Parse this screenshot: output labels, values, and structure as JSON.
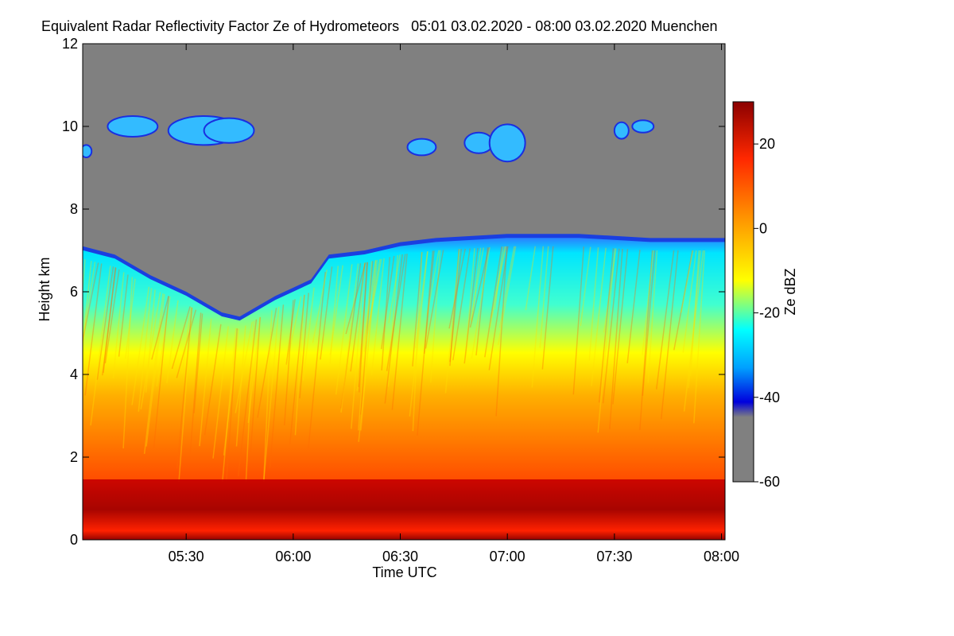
{
  "chart_data": {
    "type": "heatmap",
    "title": "Equivalent Radar Reflectivity Factor Ze of Hydrometeors   05:01 03.02.2020 - 08:00 03.02.2020 Muenchen",
    "xlabel": "Time UTC",
    "ylabel": "Height km",
    "colorbar_label": "Ze dBZ",
    "x_tick_labels": [
      "05:30",
      "06:00",
      "06:30",
      "07:00",
      "07:30",
      "08:00"
    ],
    "x_tick_minutes": [
      330,
      360,
      390,
      420,
      450,
      480
    ],
    "xlim_minutes": [
      301,
      481
    ],
    "y_ticks": [
      0,
      2,
      4,
      6,
      8,
      10,
      12
    ],
    "ylim": [
      0,
      12
    ],
    "colorbar_ticks": [
      20,
      0,
      -20,
      -40,
      -60
    ],
    "colorbar_range": [
      -60,
      30
    ],
    "background_color": "#808080",
    "colormap": [
      "#808080",
      "#0000dd",
      "#00a0ff",
      "#00ffff",
      "#ffff00",
      "#ff9000",
      "#ff2800",
      "#8b0000"
    ],
    "regions": [
      {
        "name": "melting-layer-bright-band",
        "height_km": [
          0,
          1.4
        ],
        "ze_dbz": 28
      },
      {
        "name": "rain-column",
        "height_km": [
          1.4,
          4.2
        ],
        "ze_dbz": 12
      },
      {
        "name": "snow-layer",
        "height_km": [
          4.2,
          7.4
        ],
        "ze_dbz": -10
      },
      {
        "name": "cloud-top-edge",
        "height_km": [
          5.3,
          7.4
        ],
        "ze_dbz": -35
      },
      {
        "name": "cirrus-layer",
        "height_km": [
          9.1,
          10.4
        ],
        "ze_dbz": -35
      }
    ],
    "cloud_top_km": [
      {
        "t": 301,
        "h": 7.1
      },
      {
        "t": 310,
        "h": 6.9
      },
      {
        "t": 320,
        "h": 6.4
      },
      {
        "t": 330,
        "h": 6.0
      },
      {
        "t": 340,
        "h": 5.5
      },
      {
        "t": 345,
        "h": 5.4
      },
      {
        "t": 355,
        "h": 5.9
      },
      {
        "t": 365,
        "h": 6.3
      },
      {
        "t": 370,
        "h": 6.9
      },
      {
        "t": 380,
        "h": 7.0
      },
      {
        "t": 390,
        "h": 7.2
      },
      {
        "t": 400,
        "h": 7.3
      },
      {
        "t": 420,
        "h": 7.4
      },
      {
        "t": 440,
        "h": 7.4
      },
      {
        "t": 460,
        "h": 7.3
      },
      {
        "t": 481,
        "h": 7.3
      }
    ]
  }
}
